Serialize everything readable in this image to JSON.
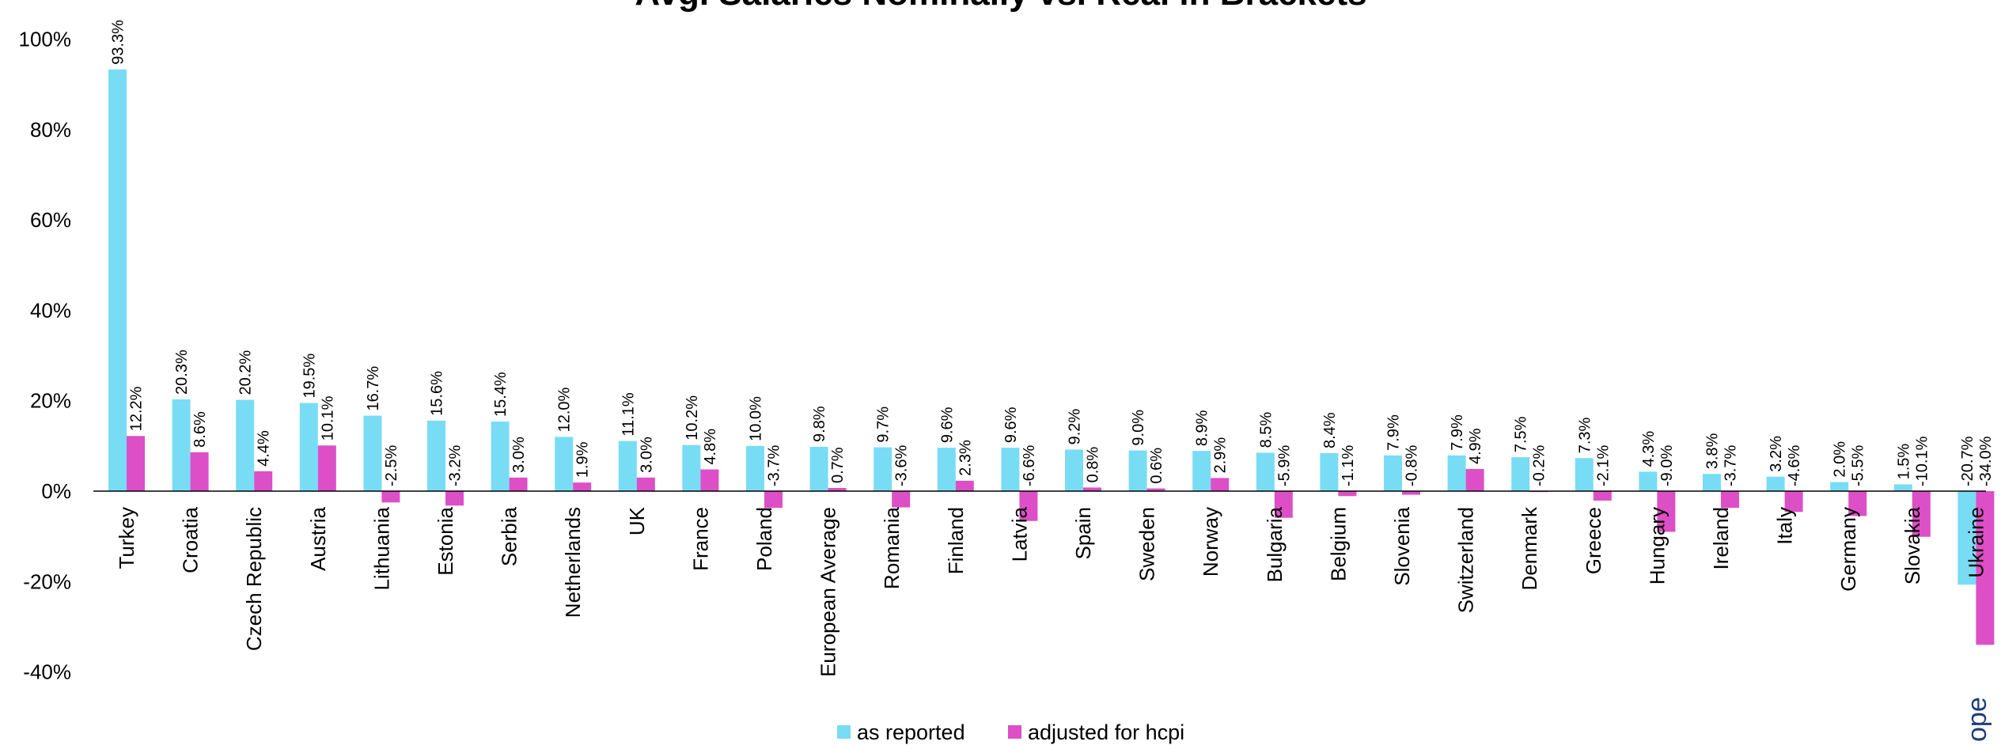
{
  "chart_data": {
    "type": "bar",
    "title": "Avg. Salaries Nominally vs. Real in Brackets",
    "xlabel": "",
    "ylabel": "",
    "ylim": [
      -40,
      100
    ],
    "yticks": [
      "100%",
      "80%",
      "60%",
      "40%",
      "20%",
      "0%",
      "-20%",
      "-40%"
    ],
    "ytick_values": [
      100,
      80,
      60,
      40,
      20,
      0,
      -20,
      -40
    ],
    "grid": false,
    "legend_position": "bottom",
    "categories": [
      "Turkey",
      "Croatia",
      "Czech Republic",
      "Austria",
      "Lithuania",
      "Estonia",
      "Serbia",
      "Netherlands",
      "UK",
      "France",
      "Poland",
      "European Average",
      "Romania",
      "Finland",
      "Latvia",
      "Spain",
      "Sweden",
      "Norway",
      "Bulgaria",
      "Belgium",
      "Slovenia",
      "Switzerland",
      "Denmark",
      "Greece",
      "Hungary",
      "Ireland",
      "Italy",
      "Germany",
      "Slovakia",
      "Ukraine"
    ],
    "series": [
      {
        "name": "as reported",
        "color": "#79DCF5",
        "values": [
          93.3,
          20.3,
          20.2,
          19.5,
          16.7,
          15.6,
          15.4,
          12.0,
          11.1,
          10.2,
          10.0,
          9.8,
          9.7,
          9.6,
          9.6,
          9.2,
          9.0,
          8.9,
          8.5,
          8.4,
          7.9,
          7.9,
          7.5,
          7.3,
          4.3,
          3.8,
          3.2,
          2.0,
          1.5,
          -20.7
        ],
        "labels": [
          "93.3%",
          "20.3%",
          "20.2%",
          "19.5%",
          "16.7%",
          "15.6%",
          "15.4%",
          "12.0%",
          "11.1%",
          "10.2%",
          "10.0%",
          "9.8%",
          "9.7%",
          "9.6%",
          "9.6%",
          "9.2%",
          "9.0%",
          "8.9%",
          "8.5%",
          "8.4%",
          "7.9%",
          "7.9%",
          "7.5%",
          "7.3%",
          "4.3%",
          "3.8%",
          "3.2%",
          "2.0%",
          "1.5%",
          "-20.7%"
        ]
      },
      {
        "name": "adjusted for hcpi",
        "color": "#DD4FC6",
        "values": [
          12.2,
          8.6,
          4.4,
          10.1,
          -2.5,
          -3.2,
          3.0,
          1.9,
          3.0,
          4.8,
          -3.7,
          0.7,
          -3.6,
          2.3,
          -6.6,
          0.8,
          0.6,
          2.9,
          -5.9,
          -1.1,
          -0.8,
          4.9,
          -0.2,
          -2.1,
          -9.0,
          -3.7,
          -4.6,
          -5.5,
          -10.1,
          -34.0
        ],
        "labels": [
          "12.2%",
          "8.6%",
          "4.4%",
          "10.1%",
          "-2.5%",
          "-3.2%",
          "3.0%",
          "1.9%",
          "3.0%",
          "4.8%",
          "-3.7%",
          "0.7%",
          "-3.6%",
          "2.3%",
          "-6.6%",
          "0.8%",
          "0.6%",
          "2.9%",
          "-5.9%",
          "-1.1%",
          "-0.8%",
          "4.9%",
          "-0.2%",
          "-2.1%",
          "-9.0%",
          "-3.7%",
          "-4.6%",
          "-5.5%",
          "-10.1%",
          "-34.0%"
        ]
      }
    ]
  },
  "watermark": "ope"
}
